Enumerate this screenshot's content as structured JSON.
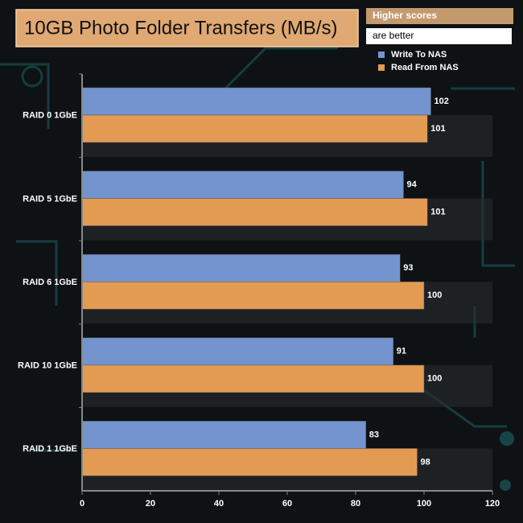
{
  "chart_data": {
    "type": "hbar",
    "title": "10GB Photo Folder Transfers (MB/s)",
    "annotations": [
      "Higher scores",
      "are better"
    ],
    "categories": [
      "RAID 0 1GbE",
      "RAID 5 1GbE",
      "RAID 6 1GbE",
      "RAID 10 1GbE",
      "RAID 1 1GbE"
    ],
    "series": [
      {
        "name": "Write To NAS",
        "color": "#7494cf",
        "values": [
          102,
          94,
          93,
          91,
          83
        ]
      },
      {
        "name": "Read From NAS",
        "color": "#e39a52",
        "values": [
          101,
          101,
          100,
          100,
          98
        ]
      }
    ],
    "xlim": [
      0,
      120
    ],
    "xticks": [
      0,
      20,
      40,
      60,
      80,
      100,
      120
    ],
    "grid": false,
    "legend": "top-right"
  }
}
